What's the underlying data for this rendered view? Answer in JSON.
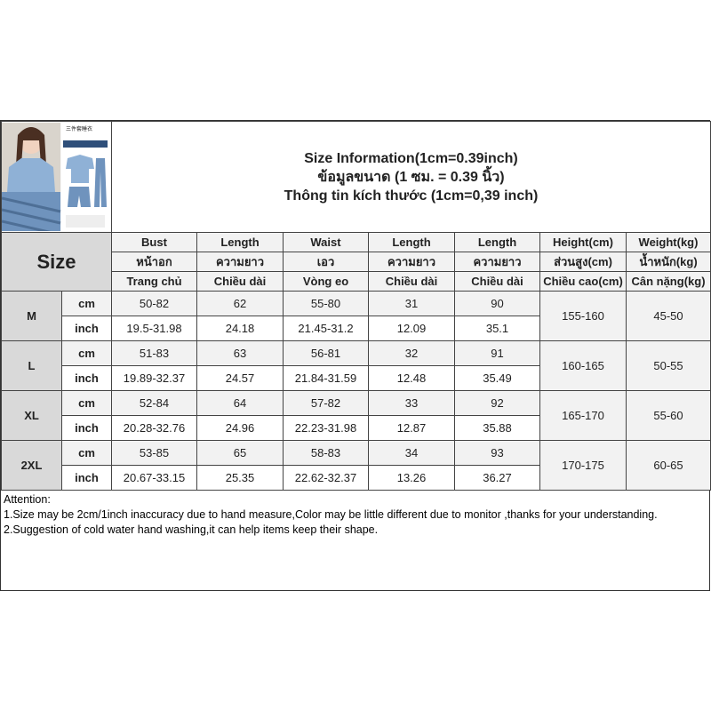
{
  "product_image": {
    "logo_lines": [
      "三件套睡衣",
      "Three piece pajamas",
      "短袖+短裤+长裤"
    ],
    "accent": "#6f93bd"
  },
  "title": [
    "Size Information(1cm=0.39inch)",
    "ข้อมูลขนาด (1 ซม. = 0.39 นิ้ว)",
    "Thông tin kích thước (1cm=0,39 inch)"
  ],
  "size_label": "Size",
  "headers": [
    [
      "Bust",
      "Length",
      "Waist",
      "Length",
      "Length",
      "Height(cm)",
      "Weight(kg)"
    ],
    [
      "หน้าอก",
      "ความยาว",
      "เอว",
      "ความยาว",
      "ความยาว",
      "ส่วนสูง(cm)",
      "น้ำหนัก(kg)"
    ],
    [
      "Trang chủ",
      "Chiều dài",
      "Vòng eo",
      "Chiều dài",
      "Chiều dài",
      "Chiều cao(cm)",
      "Cân nặng(kg)"
    ]
  ],
  "units": [
    "cm",
    "inch"
  ],
  "sizes": [
    {
      "size": "M",
      "cm": [
        "50-82",
        "62",
        "55-80",
        "31",
        "90"
      ],
      "inch": [
        "19.5-31.98",
        "24.18",
        "21.45-31.2",
        "12.09",
        "35.1"
      ],
      "height": "155-160",
      "weight": "45-50"
    },
    {
      "size": "L",
      "cm": [
        "51-83",
        "63",
        "56-81",
        "32",
        "91"
      ],
      "inch": [
        "19.89-32.37",
        "24.57",
        "21.84-31.59",
        "12.48",
        "35.49"
      ],
      "height": "160-165",
      "weight": "50-55"
    },
    {
      "size": "XL",
      "cm": [
        "52-84",
        "64",
        "57-82",
        "33",
        "92"
      ],
      "inch": [
        "20.28-32.76",
        "24.96",
        "22.23-31.98",
        "12.87",
        "35.88"
      ],
      "height": "165-170",
      "weight": "55-60"
    },
    {
      "size": "2XL",
      "cm": [
        "53-85",
        "65",
        "58-83",
        "34",
        "93"
      ],
      "inch": [
        "20.67-33.15",
        "25.35",
        "22.62-32.37",
        "13.26",
        "36.27"
      ],
      "height": "170-175",
      "weight": "60-65"
    }
  ],
  "attention": [
    "Attention:",
    "1.Size may be 2cm/1inch inaccuracy due to hand measure,Color may be little different due to monitor ,thanks for your understanding.",
    "2.Suggestion of cold water hand washing,it can help items keep their shape."
  ]
}
